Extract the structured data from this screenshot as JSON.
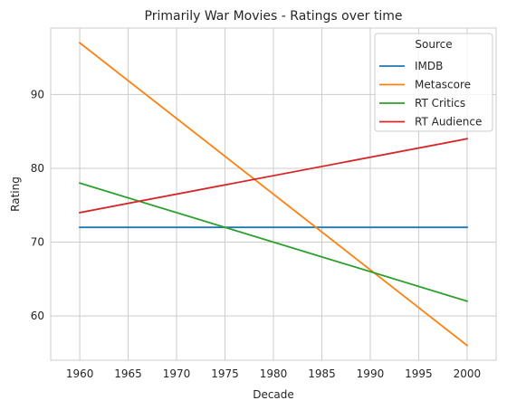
{
  "chart_data": {
    "type": "line",
    "title": "Primarily War Movies - Ratings over time",
    "xlabel": "Decade",
    "ylabel": "Rating",
    "x": [
      1960,
      2000
    ],
    "xlim": [
      1957,
      2003
    ],
    "ylim": [
      54,
      99
    ],
    "xticks": [
      "1960",
      "1965",
      "1970",
      "1975",
      "1980",
      "1985",
      "1990",
      "1995",
      "2000"
    ],
    "yticks": [
      "60",
      "70",
      "80",
      "90"
    ],
    "grid": true,
    "legend": {
      "title": "Source",
      "position": "top-right"
    },
    "series": [
      {
        "name": "IMDB",
        "color": "#1f77b4",
        "values": [
          72,
          72
        ]
      },
      {
        "name": "Metascore",
        "color": "#ff7f0e",
        "values": [
          97,
          56
        ]
      },
      {
        "name": "RT Critics",
        "color": "#2ca02c",
        "values": [
          78,
          62
        ]
      },
      {
        "name": "RT Audience",
        "color": "#d62728",
        "values": [
          74,
          84
        ]
      }
    ]
  }
}
